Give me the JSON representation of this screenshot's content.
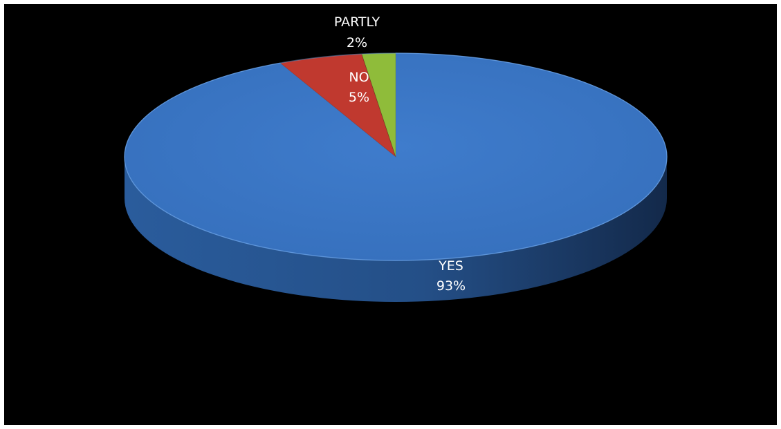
{
  "chart_data": {
    "type": "pie",
    "style": "3d",
    "categories": [
      "YES",
      "NO",
      "PARTLY"
    ],
    "values": [
      93,
      5,
      2
    ],
    "value_labels": [
      "93%",
      "5%",
      "2%"
    ],
    "colors": [
      "#3b78c8",
      "#c0392f",
      "#8fbc3a"
    ],
    "side_colors": [
      "#1e4a80",
      "#7a1f1a",
      "#5a7a20"
    ],
    "background": "#000000",
    "title": "",
    "legend": "none"
  }
}
